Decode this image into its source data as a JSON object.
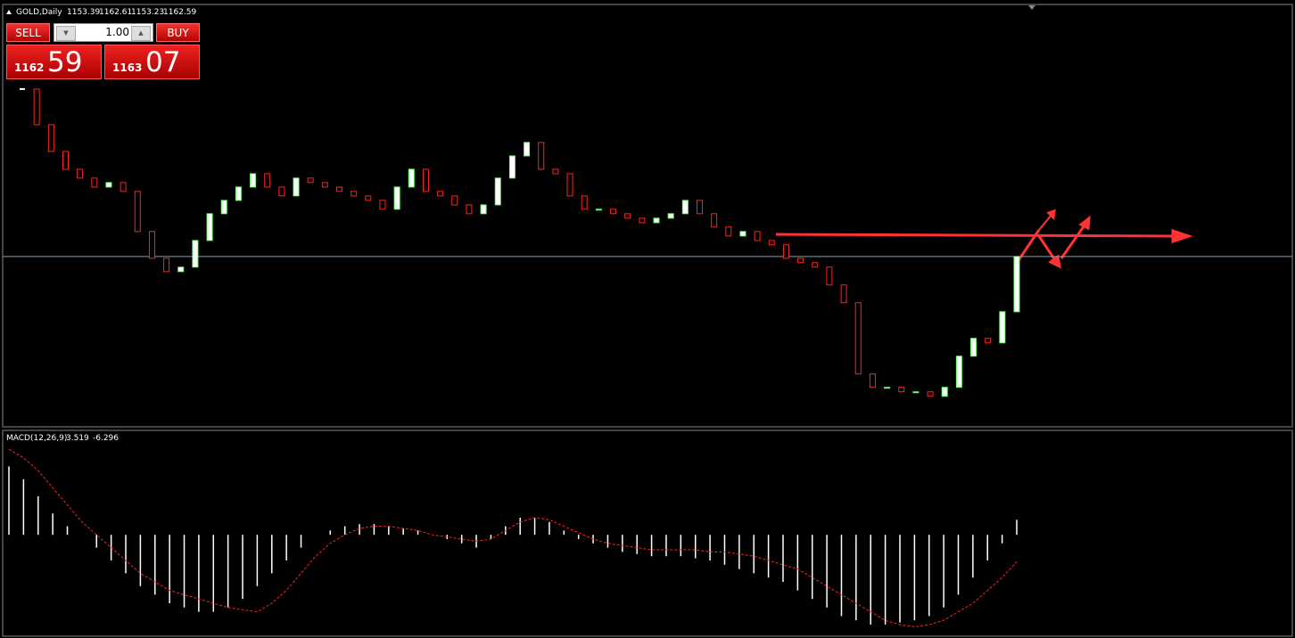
{
  "header": {
    "symbol": "GOLD,Daily",
    "open": 1153.39,
    "high": 1162.61,
    "low": 1153.23,
    "close": 1162.59
  },
  "trade_panel": {
    "sell": "SELL",
    "buy": "BUY",
    "lot": "1.00",
    "sell_big": {
      "small": "1162",
      "large": "59"
    },
    "buy_big": {
      "small": "1163",
      "large": "07"
    }
  },
  "price_pane": {
    "ylim": [
      1038,
      1348
    ],
    "closes": [
      1285.8,
      1259.6,
      1239.9,
      1226.8,
      1220.3,
      1213.7,
      1217.0,
      1210.5,
      1181.0,
      1161.3,
      1151.5,
      1154.8,
      1174.4,
      1194.1,
      1203.9,
      1213.7,
      1223.5,
      1213.7,
      1207.2,
      1220.3,
      1217.0,
      1213.7,
      1210.5,
      1207.2,
      1203.9,
      1197.4,
      1213.7,
      1226.8,
      1210.5,
      1207.2,
      1200.6,
      1194.1,
      1200.6,
      1220.3,
      1236.6,
      1246.5,
      1226.8,
      1223.5,
      1207.2,
      1197.4,
      1197.4,
      1194.1,
      1190.8,
      1187.5,
      1190.8,
      1194.1,
      1203.9,
      1194.1,
      1184.3,
      1177.7,
      1181.0,
      1174.4,
      1171.2,
      1161.3,
      1158.1,
      1154.8,
      1141.7,
      1128.6,
      1076.2,
      1066.4,
      1066.4,
      1063.1,
      1063.1,
      1059.8,
      1066.4,
      1089.3,
      1102.4,
      1099.1,
      1122.0,
      1162.6
    ]
  },
  "macd_pane": {
    "label": "MACD(12,26,9)",
    "main": 3.519,
    "signal_value": -6.296,
    "ylim": [
      -23.5,
      24
    ],
    "histogram": [
      16,
      13,
      9,
      5,
      2,
      0,
      -3,
      -6,
      -9,
      -12,
      -14,
      -16,
      -17,
      -18,
      -18,
      -17,
      -15,
      -12,
      -9,
      -6,
      -3,
      0,
      1,
      2,
      2.5,
      2.5,
      2,
      1.5,
      1,
      0,
      -1,
      -2,
      -3,
      -1,
      2,
      4,
      4,
      3,
      1,
      -1,
      -2,
      -3,
      -4,
      -4.5,
      -5,
      -5,
      -5,
      -5.5,
      -6,
      -7,
      -8,
      -9,
      -10,
      -11,
      -13,
      -15,
      -17,
      -19,
      -20,
      -21,
      -21,
      -20.5,
      -20,
      -19,
      -17,
      -14,
      -10,
      -6,
      -2,
      3.519
    ],
    "signal": [
      20,
      18,
      15,
      11,
      7,
      3,
      0,
      -3,
      -6,
      -9,
      -11,
      -13,
      -14,
      -15,
      -16,
      -17,
      -17.5,
      -18,
      -16,
      -13,
      -9,
      -5,
      -2,
      0,
      1.5,
      2,
      2,
      1.5,
      1,
      0,
      -0.5,
      -1,
      -1.5,
      -1,
      1,
      3,
      4,
      3.5,
      2,
      0.5,
      -1,
      -2,
      -2.5,
      -3,
      -3.5,
      -3.5,
      -3.5,
      -3.5,
      -4,
      -4,
      -4.5,
      -5,
      -6,
      -7,
      -8,
      -10,
      -12,
      -14,
      -16,
      -18,
      -20,
      -21,
      -21.5,
      -21,
      -20,
      -18,
      -16,
      -13,
      -10,
      -6.296
    ]
  }
}
